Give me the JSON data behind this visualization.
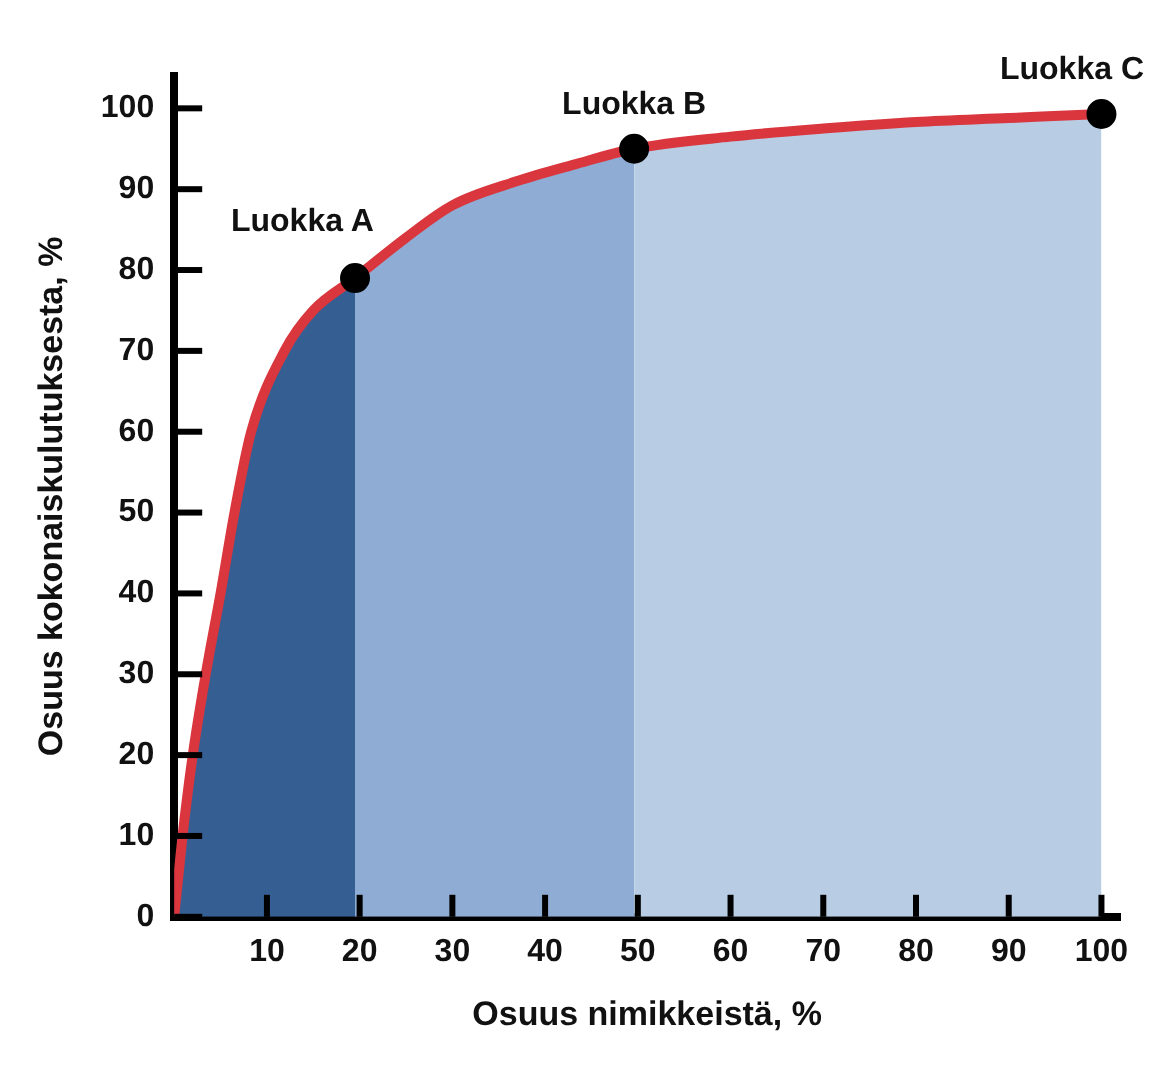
{
  "chart_data": {
    "type": "line",
    "xlabel": "Osuus nimikkeistä, %",
    "ylabel": "Osuus kokonaiskulutuksesta, %",
    "xlim": [
      0,
      102
    ],
    "ylim": [
      0,
      104
    ],
    "xticks": [
      10,
      20,
      30,
      40,
      50,
      60,
      70,
      80,
      90,
      100
    ],
    "yticks": [
      0,
      10,
      20,
      30,
      40,
      50,
      60,
      70,
      80,
      90,
      100
    ],
    "grid": false,
    "legend": false,
    "series": [
      {
        "type": "area",
        "color": "#355f93",
        "x": [
          0,
          0.9,
          2,
          3.4,
          5,
          6.5,
          8.3,
          11.9,
          15,
          19.5
        ],
        "values": [
          0,
          10,
          20,
          30,
          40,
          50,
          60,
          70,
          75,
          79
        ]
      },
      {
        "type": "area",
        "color": "#8fadd4",
        "x": [
          19.5,
          25,
          30,
          37,
          43,
          49.6
        ],
        "values": [
          79,
          84,
          88,
          91,
          93,
          95
        ]
      },
      {
        "type": "area",
        "color": "#b8cce4",
        "x": [
          49.6,
          60,
          70,
          80,
          90,
          100
        ],
        "values": [
          95,
          96.5,
          97.5,
          98.3,
          98.8,
          99.3
        ]
      },
      {
        "color": "#d9363e",
        "line_style": "solid",
        "marker": "none",
        "x": [
          0,
          0.9,
          2,
          3.4,
          5,
          6.5,
          8.3,
          11.9,
          15,
          19.5,
          25,
          30,
          37,
          43,
          49.6,
          60,
          70,
          80,
          90,
          100
        ],
        "values": [
          0,
          10,
          20,
          30,
          40,
          50,
          60,
          70,
          75,
          79,
          84,
          88,
          91,
          93,
          95,
          96.5,
          97.5,
          98.3,
          98.8,
          99.3
        ]
      },
      {
        "type": "scatter",
        "color": "#000000",
        "marker": "circle",
        "x": [
          19.5,
          49.6,
          100
        ],
        "values": [
          79,
          95,
          99.3
        ]
      }
    ],
    "annotations": [
      {
        "text": "Luokka A",
        "x": 19.5,
        "y": 79
      },
      {
        "text": "Luokka B",
        "x": 49.6,
        "y": 95
      },
      {
        "text": "Luokka C",
        "x": 100,
        "y": 99.3
      }
    ]
  }
}
